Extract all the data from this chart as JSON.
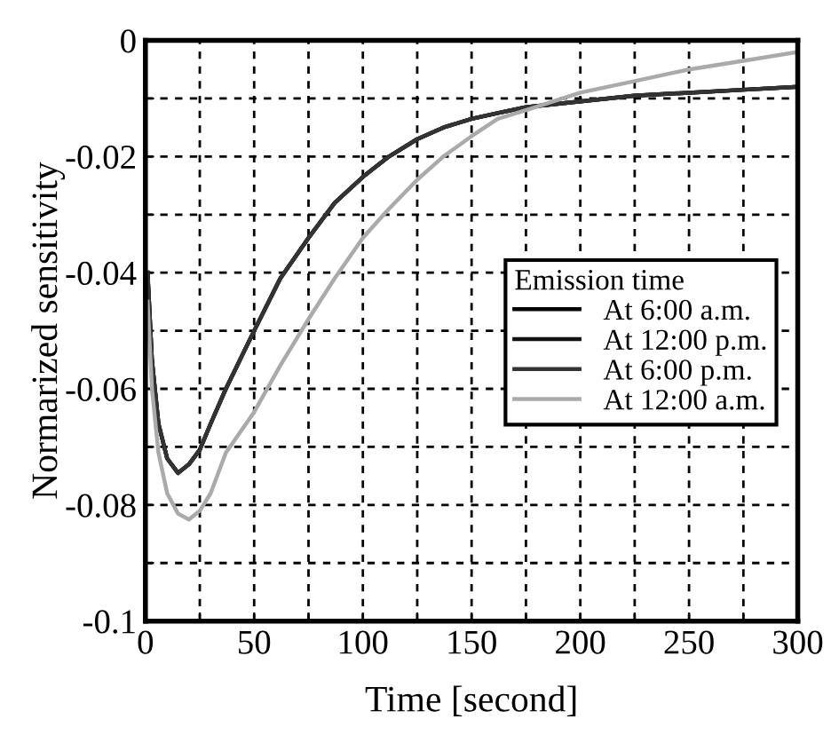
{
  "chart_data": {
    "type": "line",
    "xlabel": "Time [second]",
    "ylabel": "Normarized sensitivity",
    "legend_title": "Emission time",
    "legend": "right",
    "x": [
      1,
      3,
      6,
      10,
      15,
      20,
      25,
      30,
      37,
      50,
      62,
      75,
      87,
      100,
      112,
      125,
      137,
      150,
      162,
      175,
      200,
      225,
      250,
      275,
      300
    ],
    "series": [
      {
        "name": "At 6:00 a.m.",
        "color": "#000000",
        "values": [
          -0.04,
          -0.055,
          -0.066,
          -0.072,
          -0.0745,
          -0.073,
          -0.0705,
          -0.066,
          -0.06,
          -0.05,
          -0.041,
          -0.034,
          -0.028,
          -0.0235,
          -0.02,
          -0.017,
          -0.015,
          -0.0135,
          -0.0125,
          -0.0115,
          -0.0105,
          -0.0095,
          -0.009,
          -0.0085,
          -0.008
        ]
      },
      {
        "name": "At 12:00 p.m.",
        "color": "#111111",
        "values": [
          -0.04,
          -0.055,
          -0.066,
          -0.072,
          -0.0745,
          -0.073,
          -0.0705,
          -0.066,
          -0.06,
          -0.05,
          -0.041,
          -0.034,
          -0.028,
          -0.0235,
          -0.02,
          -0.017,
          -0.015,
          -0.0135,
          -0.0125,
          -0.0115,
          -0.0105,
          -0.0095,
          -0.009,
          -0.0085,
          -0.008
        ]
      },
      {
        "name": "At 6:00 p.m.",
        "color": "#333333",
        "values": [
          -0.04,
          -0.055,
          -0.066,
          -0.072,
          -0.0745,
          -0.073,
          -0.0705,
          -0.066,
          -0.06,
          -0.05,
          -0.041,
          -0.034,
          -0.028,
          -0.0235,
          -0.02,
          -0.017,
          -0.015,
          -0.0135,
          -0.0125,
          -0.0115,
          -0.0105,
          -0.0095,
          -0.009,
          -0.0085,
          -0.008
        ]
      },
      {
        "name": "At 12:00 a.m.",
        "color": "#aaaaaa",
        "values": [
          -0.045,
          -0.06,
          -0.071,
          -0.078,
          -0.0815,
          -0.0825,
          -0.081,
          -0.078,
          -0.071,
          -0.064,
          -0.056,
          -0.048,
          -0.041,
          -0.034,
          -0.029,
          -0.024,
          -0.02,
          -0.0165,
          -0.0135,
          -0.012,
          -0.009,
          -0.007,
          -0.005,
          -0.0035,
          -0.002
        ]
      }
    ],
    "xlim": [
      0,
      300
    ],
    "ylim": [
      -0.1,
      0
    ],
    "xticks": [
      0,
      {
        "value": 25,
        "label": null
      },
      50,
      {
        "value": 75,
        "label": null
      },
      100,
      {
        "value": 125,
        "label": null
      },
      150,
      {
        "value": 175,
        "label": null
      },
      200,
      {
        "value": 225,
        "label": null
      },
      250,
      {
        "value": 275,
        "label": null
      },
      300
    ],
    "yticks": [
      {
        "value": -0.1,
        "label": "-0.1"
      },
      {
        "value": -0.09,
        "label": null
      },
      -0.08,
      {
        "value": -0.07,
        "label": null
      },
      -0.06,
      {
        "value": -0.05,
        "label": null
      },
      -0.04,
      {
        "value": -0.03,
        "label": null
      },
      -0.02,
      {
        "value": -0.01,
        "label": null
      },
      0
    ],
    "grid": true,
    "line_style": "solid"
  }
}
